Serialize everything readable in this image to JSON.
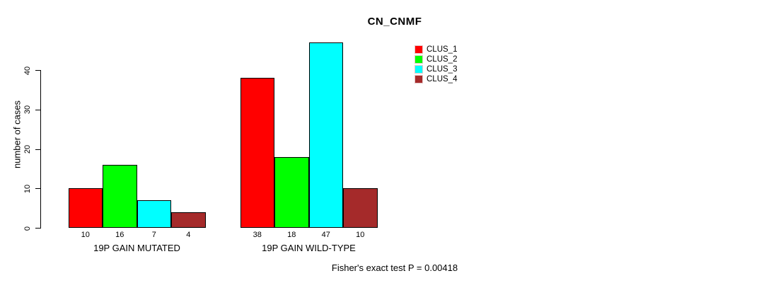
{
  "chart_data": {
    "type": "bar",
    "title": "CN_CNMF",
    "ylabel": "number of cases",
    "xlabel": "",
    "yticks": [
      0,
      10,
      20,
      30,
      40
    ],
    "ylim": [
      0,
      47
    ],
    "grid": false,
    "legend_position": "top-right",
    "categories": [
      "19P GAIN MUTATED",
      "19P GAIN WILD-TYPE"
    ],
    "series": [
      {
        "name": "CLUS_1",
        "color": "#FF0000",
        "values": [
          10,
          38
        ]
      },
      {
        "name": "CLUS_2",
        "color": "#00FF00",
        "values": [
          16,
          18
        ]
      },
      {
        "name": "CLUS_3",
        "color": "#00FFFF",
        "values": [
          7,
          47
        ]
      },
      {
        "name": "CLUS_4",
        "color": "#A52A2A",
        "values": [
          4,
          10
        ]
      }
    ],
    "bar_value_labels": [
      [
        10,
        16,
        7,
        4
      ],
      [
        38,
        18,
        47,
        10
      ]
    ],
    "annotation": "Fisher's exact test P = 0.00418"
  }
}
